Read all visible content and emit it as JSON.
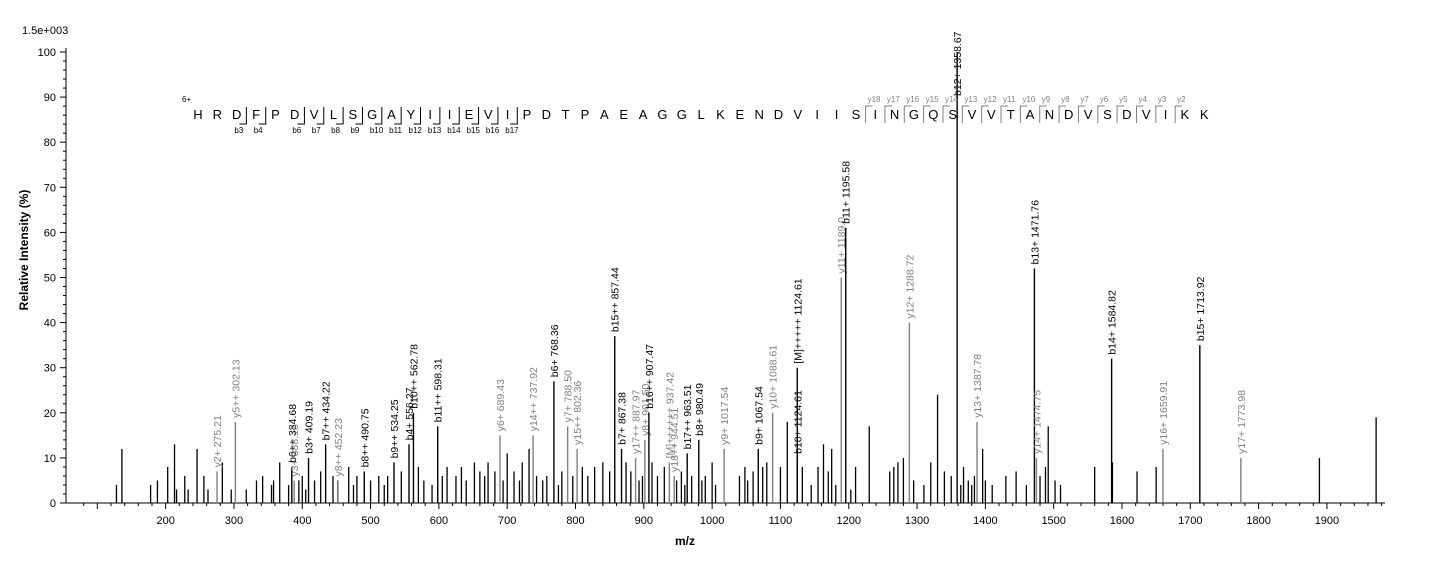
{
  "chart_data": {
    "type": "bar",
    "xlabel": "m/z",
    "ylabel": "Relative   Intensity (%)",
    "y_max_label": "1.5e+003",
    "xlim": [
      60,
      1985
    ],
    "ylim": [
      0,
      100
    ],
    "x_ticks": [
      200,
      300,
      400,
      500,
      600,
      700,
      800,
      900,
      1000,
      1100,
      1200,
      1300,
      1400,
      1500,
      1600,
      1700,
      1800,
      1900
    ],
    "y_ticks": [
      0,
      10,
      20,
      30,
      40,
      50,
      60,
      70,
      80,
      90,
      100
    ],
    "colors": {
      "b_ion": "#000000",
      "y_ion": "#808080",
      "noise": "#000000"
    },
    "labeled_peaks": [
      {
        "mz": 275.21,
        "intensity": 7,
        "label": "y2+ 275.21",
        "ion": "y"
      },
      {
        "mz": 302.13,
        "intensity": 18,
        "label": "y5++ 302.13",
        "ion": "y"
      },
      {
        "mz": 384.68,
        "intensity": 8,
        "label": "b6++ 384.68",
        "ion": "b"
      },
      {
        "mz": 388.15,
        "intensity": 5,
        "label": "y3+ 388.15",
        "ion": "y"
      },
      {
        "mz": 409.19,
        "intensity": 10,
        "label": "b3+ 409.19",
        "ion": "b"
      },
      {
        "mz": 434.22,
        "intensity": 13,
        "label": "b7++ 434.22",
        "ion": "b"
      },
      {
        "mz": 452.23,
        "intensity": 5,
        "label": "y8++ 452.23",
        "ion": "y"
      },
      {
        "mz": 490.75,
        "intensity": 7,
        "label": "b8++ 490.75",
        "ion": "b"
      },
      {
        "mz": 534.25,
        "intensity": 9,
        "label": "b9++ 534.25",
        "ion": "b"
      },
      {
        "mz": 556.27,
        "intensity": 13,
        "label": "b4+ 556.27",
        "ion": "b"
      },
      {
        "mz": 562.78,
        "intensity": 20,
        "label": "b10++ 562.78",
        "ion": "b"
      },
      {
        "mz": 598.31,
        "intensity": 17,
        "label": "b11++ 598.31",
        "ion": "b"
      },
      {
        "mz": 689.43,
        "intensity": 15,
        "label": "y6+ 689.43",
        "ion": "y"
      },
      {
        "mz": 737.92,
        "intensity": 15,
        "label": "y14++ 737.92",
        "ion": "y"
      },
      {
        "mz": 768.36,
        "intensity": 27,
        "label": "b6+ 768.36",
        "ion": "b"
      },
      {
        "mz": 788.5,
        "intensity": 17,
        "label": "y7+ 788.50",
        "ion": "y"
      },
      {
        "mz": 802.36,
        "intensity": 12,
        "label": "y15++ 802.36",
        "ion": "y"
      },
      {
        "mz": 857.44,
        "intensity": 37,
        "label": "b15++ 857.44",
        "ion": "b"
      },
      {
        "mz": 867.38,
        "intensity": 12,
        "label": "b7+ 867.38",
        "ion": "b"
      },
      {
        "mz": 887.97,
        "intensity": 10,
        "label": "y17++ 887.97",
        "ion": "y"
      },
      {
        "mz": 901.5,
        "intensity": 14,
        "label": "y8+ 901.50",
        "ion": "y"
      },
      {
        "mz": 907.47,
        "intensity": 20,
        "label": "b16++ 907.47",
        "ion": "b"
      },
      {
        "mz": 937.42,
        "intensity": 9,
        "label": "[M]++++++ 937.42",
        "ion": "y"
      },
      {
        "mz": 944.51,
        "intensity": 6,
        "label": "y18++ 944.51",
        "ion": "y"
      },
      {
        "mz": 963.51,
        "intensity": 11,
        "label": "b17++ 963.51",
        "ion": "b"
      },
      {
        "mz": 980.49,
        "intensity": 14,
        "label": "b8+ 980.49",
        "ion": "b"
      },
      {
        "mz": 1017.54,
        "intensity": 12,
        "label": "y9+ 1017.54",
        "ion": "y"
      },
      {
        "mz": 1067.54,
        "intensity": 12,
        "label": "b9+ 1067.54",
        "ion": "b"
      },
      {
        "mz": 1088.61,
        "intensity": 20,
        "label": "y10+ 1088.61",
        "ion": "y"
      },
      {
        "mz": 1124.61,
        "intensity": 10,
        "label": "b10+ 1124.61",
        "ion": "b"
      },
      {
        "mz": 1124.61,
        "intensity": 30,
        "label": "[M]+++++ 1124.61",
        "ion": "b"
      },
      {
        "mz": 1189.0,
        "intensity": 50,
        "label": "y11+ 1189.0",
        "ion": "y"
      },
      {
        "mz": 1195.58,
        "intensity": 61,
        "label": "b11+ 1195.58",
        "ion": "b"
      },
      {
        "mz": 1288.72,
        "intensity": 40,
        "label": "y12+ 1288.72",
        "ion": "y"
      },
      {
        "mz": 1358.67,
        "intensity": 100,
        "label": "b12+ 1358.67",
        "ion": "b"
      },
      {
        "mz": 1387.78,
        "intensity": 18,
        "label": "y13+ 1387.78",
        "ion": "y"
      },
      {
        "mz": 1471.76,
        "intensity": 52,
        "label": "b13+ 1471.76",
        "ion": "b"
      },
      {
        "mz": 1474.75,
        "intensity": 10,
        "label": "y14+ 1474.75",
        "ion": "y"
      },
      {
        "mz": 1584.82,
        "intensity": 32,
        "label": "b14+ 1584.82",
        "ion": "b"
      },
      {
        "mz": 1659.91,
        "intensity": 12,
        "label": "y16+ 1659.91",
        "ion": "y"
      },
      {
        "mz": 1713.92,
        "intensity": 35,
        "label": "b15+ 1713.92",
        "ion": "b"
      },
      {
        "mz": 1773.98,
        "intensity": 10,
        "label": "y17+ 1773.98",
        "ion": "y"
      }
    ],
    "unlabeled_peaks": [
      [
        128,
        4
      ],
      [
        136,
        12
      ],
      [
        178,
        4
      ],
      [
        188,
        5
      ],
      [
        203,
        8
      ],
      [
        213,
        13
      ],
      [
        216,
        3
      ],
      [
        228,
        6
      ],
      [
        233,
        3
      ],
      [
        246,
        12
      ],
      [
        256,
        6
      ],
      [
        262,
        3
      ],
      [
        283,
        9
      ],
      [
        296,
        3
      ],
      [
        318,
        3
      ],
      [
        333,
        5
      ],
      [
        342,
        6
      ],
      [
        355,
        4
      ],
      [
        358,
        5
      ],
      [
        367,
        9
      ],
      [
        380,
        4
      ],
      [
        395,
        5
      ],
      [
        400,
        6
      ],
      [
        405,
        3
      ],
      [
        418,
        5
      ],
      [
        427,
        7
      ],
      [
        445,
        6
      ],
      [
        452,
        5
      ],
      [
        468,
        8
      ],
      [
        475,
        4
      ],
      [
        480,
        6
      ],
      [
        500,
        5
      ],
      [
        512,
        6
      ],
      [
        520,
        4
      ],
      [
        525,
        6
      ],
      [
        545,
        7
      ],
      [
        570,
        8
      ],
      [
        578,
        5
      ],
      [
        590,
        4
      ],
      [
        605,
        6
      ],
      [
        612,
        8
      ],
      [
        625,
        6
      ],
      [
        633,
        8
      ],
      [
        640,
        5
      ],
      [
        652,
        9
      ],
      [
        660,
        7
      ],
      [
        667,
        6
      ],
      [
        672,
        9
      ],
      [
        682,
        7
      ],
      [
        694,
        5
      ],
      [
        700,
        11
      ],
      [
        710,
        7
      ],
      [
        718,
        5
      ],
      [
        722,
        9
      ],
      [
        732,
        12
      ],
      [
        743,
        6
      ],
      [
        752,
        5
      ],
      [
        758,
        6
      ],
      [
        775,
        4
      ],
      [
        780,
        7
      ],
      [
        796,
        6
      ],
      [
        810,
        8
      ],
      [
        818,
        6
      ],
      [
        828,
        8
      ],
      [
        840,
        9
      ],
      [
        850,
        7
      ],
      [
        874,
        9
      ],
      [
        881,
        7
      ],
      [
        893,
        5
      ],
      [
        898,
        6
      ],
      [
        912,
        9
      ],
      [
        920,
        6
      ],
      [
        930,
        8
      ],
      [
        948,
        5
      ],
      [
        955,
        7
      ],
      [
        960,
        4
      ],
      [
        970,
        6
      ],
      [
        985,
        5
      ],
      [
        990,
        6
      ],
      [
        1000,
        9
      ],
      [
        1005,
        4
      ],
      [
        1040,
        6
      ],
      [
        1048,
        8
      ],
      [
        1052,
        5
      ],
      [
        1060,
        7
      ],
      [
        1074,
        8
      ],
      [
        1080,
        9
      ],
      [
        1100,
        8
      ],
      [
        1110,
        18
      ],
      [
        1132,
        8
      ],
      [
        1145,
        4
      ],
      [
        1155,
        8
      ],
      [
        1163,
        13
      ],
      [
        1170,
        7
      ],
      [
        1175,
        12
      ],
      [
        1181,
        4
      ],
      [
        1203,
        3
      ],
      [
        1210,
        8
      ],
      [
        1230,
        17
      ],
      [
        1260,
        7
      ],
      [
        1266,
        8
      ],
      [
        1272,
        9
      ],
      [
        1280,
        10
      ],
      [
        1295,
        5
      ],
      [
        1310,
        4
      ],
      [
        1320,
        9
      ],
      [
        1330,
        24
      ],
      [
        1340,
        7
      ],
      [
        1350,
        6
      ],
      [
        1364,
        4
      ],
      [
        1368,
        8
      ],
      [
        1375,
        5
      ],
      [
        1380,
        4
      ],
      [
        1384,
        6
      ],
      [
        1396,
        12
      ],
      [
        1400,
        5
      ],
      [
        1410,
        4
      ],
      [
        1430,
        6
      ],
      [
        1445,
        7
      ],
      [
        1460,
        4
      ],
      [
        1480,
        6
      ],
      [
        1488,
        8
      ],
      [
        1492,
        17
      ],
      [
        1502,
        5
      ],
      [
        1510,
        4
      ],
      [
        1560,
        8
      ],
      [
        1586,
        9
      ],
      [
        1622,
        7
      ],
      [
        1650,
        8
      ],
      [
        1889,
        10
      ],
      [
        1972,
        19
      ]
    ],
    "sequence": {
      "charge_label": "6+",
      "letters": [
        "H",
        "R",
        "D",
        "F",
        "P",
        "D",
        "V",
        "L",
        "S",
        "G",
        "A",
        "Y",
        "I",
        "I",
        "E",
        "V",
        "I",
        "P",
        "D",
        "T",
        "P",
        "A",
        "E",
        "A",
        "G",
        "G",
        "L",
        "K",
        "E",
        "N",
        "D",
        "V",
        "I",
        "I",
        "S",
        "I",
        "N",
        "G",
        "Q",
        "S",
        "V",
        "V",
        "T",
        "A",
        "N",
        "D",
        "V",
        "S",
        "D",
        "V",
        "I",
        "K",
        "K"
      ],
      "b_ions": [
        {
          "after": 2,
          "label": "b3"
        },
        {
          "after": 3,
          "label": "b4"
        },
        {
          "after": 5,
          "label": "b6"
        },
        {
          "after": 6,
          "label": "b7"
        },
        {
          "after": 7,
          "label": "b8"
        },
        {
          "after": 8,
          "label": "b9"
        },
        {
          "after": 9,
          "label": "b10"
        },
        {
          "after": 10,
          "label": "b11"
        },
        {
          "after": 11,
          "label": "b12"
        },
        {
          "after": 12,
          "label": "b13"
        },
        {
          "after": 13,
          "label": "b14"
        },
        {
          "after": 14,
          "label": "b15"
        },
        {
          "after": 15,
          "label": "b16"
        },
        {
          "after": 16,
          "label": "b17"
        }
      ],
      "y_ions": [
        {
          "before": 35,
          "label": "y18"
        },
        {
          "before": 36,
          "label": "y17"
        },
        {
          "before": 37,
          "label": "y16"
        },
        {
          "before": 38,
          "label": "y15"
        },
        {
          "before": 39,
          "label": "y14"
        },
        {
          "before": 40,
          "label": "y13"
        },
        {
          "before": 41,
          "label": "y12"
        },
        {
          "before": 42,
          "label": "y11"
        },
        {
          "before": 43,
          "label": "y10"
        },
        {
          "before": 44,
          "label": "y9"
        },
        {
          "before": 45,
          "label": "y8"
        },
        {
          "before": 46,
          "label": "y7"
        },
        {
          "before": 47,
          "label": "y6"
        },
        {
          "before": 48,
          "label": "y5"
        },
        {
          "before": 49,
          "label": "y4"
        },
        {
          "before": 50,
          "label": "y3"
        },
        {
          "before": 51,
          "label": "y2"
        }
      ]
    }
  }
}
